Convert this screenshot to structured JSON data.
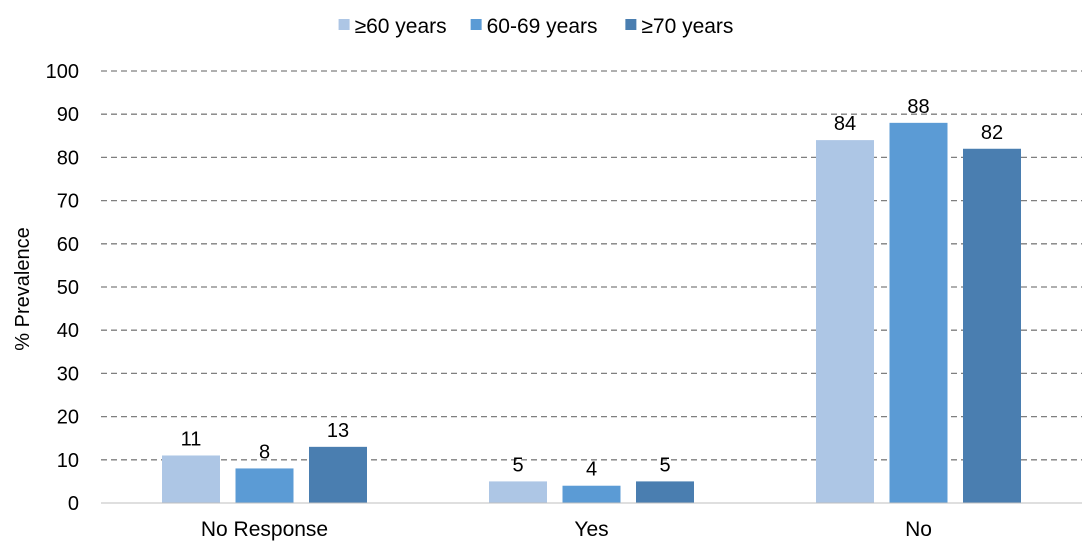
{
  "chart_data": {
    "type": "bar",
    "title": "",
    "xlabel": "",
    "ylabel": "% Prevalence",
    "ylim": [
      0,
      100
    ],
    "yticks": [
      0,
      10,
      20,
      30,
      40,
      50,
      60,
      70,
      80,
      90,
      100
    ],
    "grid": "horizontal dashed",
    "legend_position": "top",
    "categories": [
      "No Response",
      "Yes",
      "No"
    ],
    "series": [
      {
        "name": "≥60 years",
        "color": "#adc6e5",
        "values": [
          11,
          5,
          84
        ]
      },
      {
        "name": "60-69 years",
        "color": "#5b9bd5",
        "values": [
          8,
          4,
          88
        ]
      },
      {
        "name": "≥70 years",
        "color": "#4a7eb0",
        "values": [
          13,
          5,
          82
        ]
      }
    ]
  }
}
